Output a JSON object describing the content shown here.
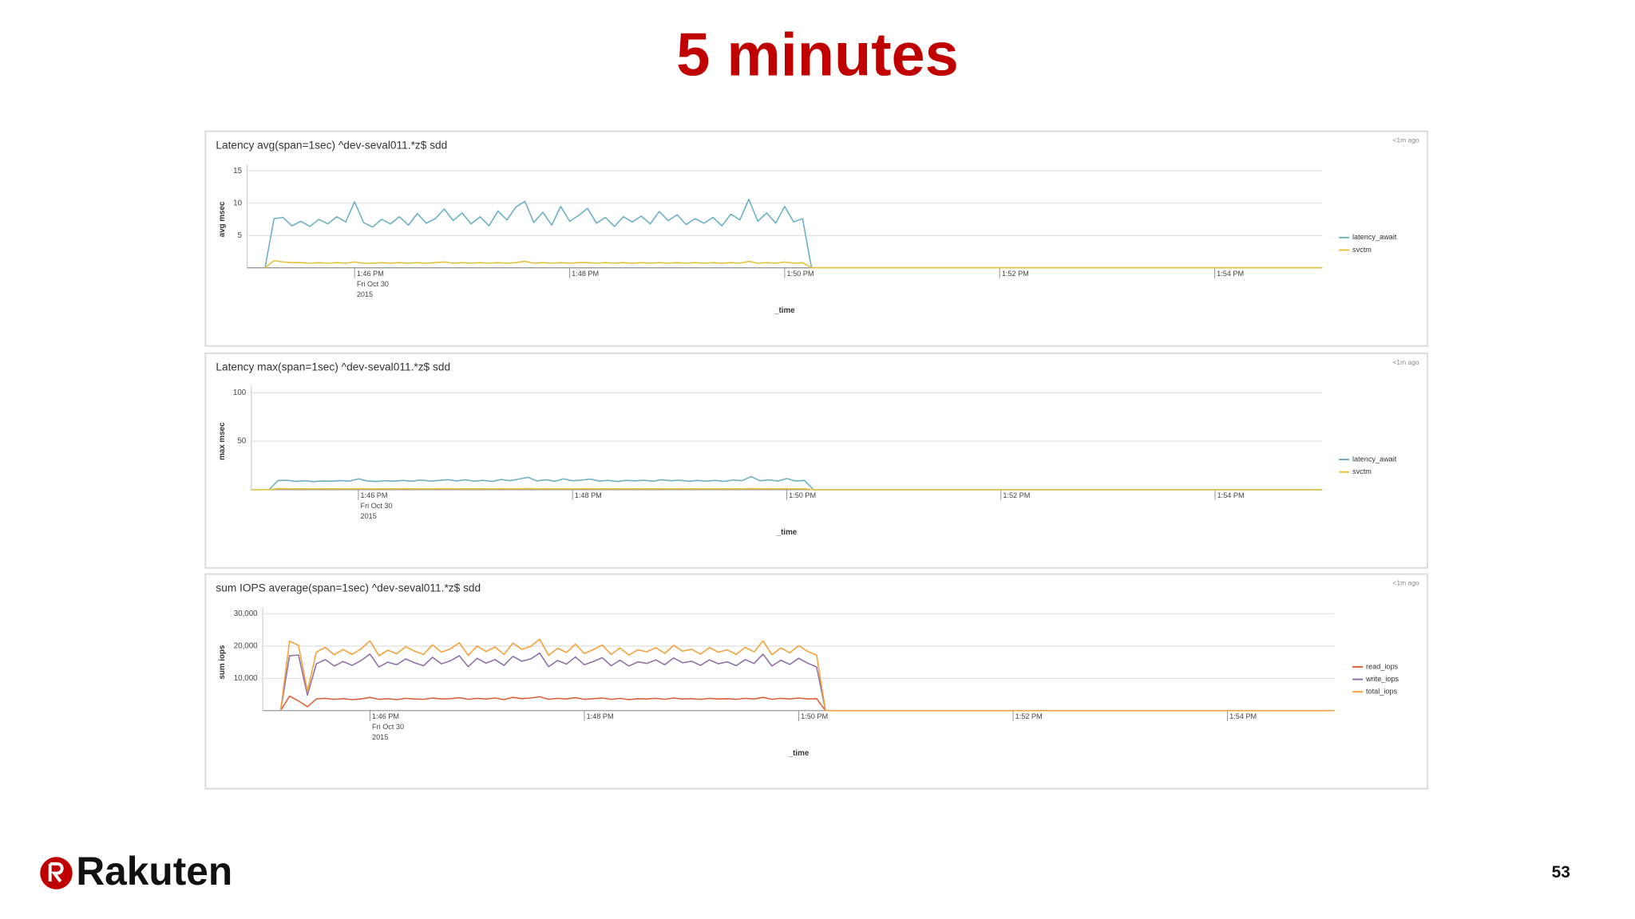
{
  "slide": {
    "title": "5 minutes",
    "logo": "Rakuten",
    "page": "53"
  },
  "chart_data": [
    {
      "type": "line",
      "title": "Latency avg(span=1sec) ^dev-seval011.*z$ sdd",
      "timestamp": "<1m ago",
      "y_label": "avg msec",
      "x_label": "_time",
      "grid": true,
      "legend": "right",
      "x": [
        "13:45:00",
        "13:45:10",
        "13:45:15",
        "13:45:20",
        "13:45:25",
        "13:45:30",
        "13:45:35",
        "13:45:40",
        "13:45:45",
        "13:45:50",
        "13:45:55",
        "13:46:00",
        "13:46:05",
        "13:46:10",
        "13:46:15",
        "13:46:20",
        "13:46:25",
        "13:46:30",
        "13:46:35",
        "13:46:40",
        "13:46:45",
        "13:46:50",
        "13:46:55",
        "13:47:00",
        "13:47:05",
        "13:47:10",
        "13:47:15",
        "13:47:20",
        "13:47:25",
        "13:47:30",
        "13:47:35",
        "13:47:40",
        "13:47:45",
        "13:47:50",
        "13:47:55",
        "13:48:00",
        "13:48:05",
        "13:48:10",
        "13:48:15",
        "13:48:20",
        "13:48:25",
        "13:48:30",
        "13:48:35",
        "13:48:40",
        "13:48:45",
        "13:48:50",
        "13:48:55",
        "13:49:00",
        "13:49:05",
        "13:49:10",
        "13:49:15",
        "13:49:20",
        "13:49:25",
        "13:49:30",
        "13:49:35",
        "13:49:40",
        "13:49:45",
        "13:49:50",
        "13:49:55",
        "13:50:00",
        "13:50:05",
        "13:50:10",
        "13:50:15",
        "13:50:20",
        "13:55:00"
      ],
      "xlim": [
        "13:45:00",
        "13:55:00"
      ],
      "xticks": [
        {
          "value": "13:46:00",
          "label": [
            "1:46 PM",
            "Fri Oct 30",
            "2015"
          ]
        },
        {
          "value": "13:48:00",
          "label": "1:48 PM"
        },
        {
          "value": "13:50:00",
          "label": "1:50 PM"
        },
        {
          "value": "13:52:00",
          "label": "1:52 PM"
        },
        {
          "value": "13:54:00",
          "label": "1:54 PM"
        }
      ],
      "ylim": [
        0,
        15
      ],
      "yticks": [
        5,
        10,
        15
      ],
      "series": [
        {
          "name": "latency_await",
          "color": "#6aafc2",
          "values": [
            null,
            0,
            7.6,
            7.8,
            6.5,
            7.2,
            6.4,
            7.5,
            6.8,
            7.9,
            7.1,
            10.2,
            7.0,
            6.3,
            7.5,
            6.8,
            7.9,
            6.6,
            8.4,
            6.9,
            7.6,
            9.1,
            7.3,
            8.5,
            6.8,
            7.9,
            6.5,
            8.8,
            7.4,
            9.4,
            10.3,
            7.0,
            8.6,
            6.6,
            9.5,
            7.2,
            8.1,
            9.2,
            6.9,
            7.8,
            6.4,
            7.9,
            7.1,
            8.0,
            6.8,
            8.7,
            7.3,
            8.2,
            6.7,
            7.6,
            6.9,
            7.8,
            6.5,
            8.3,
            7.4,
            10.6,
            7.2,
            8.5,
            6.9,
            9.5,
            7.1,
            7.6,
            0,
            0,
            0
          ]
        },
        {
          "name": "svctm",
          "color": "#e6c13a",
          "values": [
            null,
            0,
            1.1,
            0.9,
            0.8,
            0.8,
            0.7,
            0.8,
            0.7,
            0.8,
            0.7,
            0.9,
            0.7,
            0.7,
            0.8,
            0.7,
            0.8,
            0.7,
            0.8,
            0.7,
            0.8,
            0.9,
            0.7,
            0.8,
            0.7,
            0.8,
            0.7,
            0.8,
            0.7,
            0.8,
            1.0,
            0.7,
            0.8,
            0.7,
            0.8,
            0.7,
            0.8,
            0.8,
            0.7,
            0.8,
            0.7,
            0.8,
            0.7,
            0.8,
            0.7,
            0.8,
            0.7,
            0.8,
            0.7,
            0.8,
            0.7,
            0.8,
            0.7,
            0.8,
            0.7,
            1.0,
            0.7,
            0.8,
            0.7,
            0.9,
            0.7,
            0.8,
            0,
            0,
            0
          ]
        }
      ]
    },
    {
      "type": "line",
      "title": "Latency max(span=1sec) ^dev-seval011.*z$ sdd",
      "timestamp": "<1m ago",
      "y_label": "max msec",
      "x_label": "_time",
      "grid": true,
      "legend": "right",
      "x": [
        "13:45:00",
        "13:45:10",
        "13:45:15",
        "13:45:20",
        "13:45:25",
        "13:45:30",
        "13:45:35",
        "13:45:40",
        "13:45:45",
        "13:45:50",
        "13:45:55",
        "13:46:00",
        "13:46:05",
        "13:46:10",
        "13:46:15",
        "13:46:20",
        "13:46:25",
        "13:46:30",
        "13:46:35",
        "13:46:40",
        "13:46:45",
        "13:46:50",
        "13:46:55",
        "13:47:00",
        "13:47:05",
        "13:47:10",
        "13:47:15",
        "13:47:20",
        "13:47:25",
        "13:47:30",
        "13:47:35",
        "13:47:40",
        "13:47:45",
        "13:47:50",
        "13:47:55",
        "13:48:00",
        "13:48:05",
        "13:48:10",
        "13:48:15",
        "13:48:20",
        "13:48:25",
        "13:48:30",
        "13:48:35",
        "13:48:40",
        "13:48:45",
        "13:48:50",
        "13:48:55",
        "13:49:00",
        "13:49:05",
        "13:49:10",
        "13:49:15",
        "13:49:20",
        "13:49:25",
        "13:49:30",
        "13:49:35",
        "13:49:40",
        "13:49:45",
        "13:49:50",
        "13:49:55",
        "13:50:00",
        "13:50:05",
        "13:50:10",
        "13:50:15",
        "13:50:20",
        "13:55:00"
      ],
      "xlim": [
        "13:45:00",
        "13:55:00"
      ],
      "xticks": [
        {
          "value": "13:46:00",
          "label": [
            "1:46 PM",
            "Fri Oct 30",
            "2015"
          ]
        },
        {
          "value": "13:48:00",
          "label": "1:48 PM"
        },
        {
          "value": "13:50:00",
          "label": "1:50 PM"
        },
        {
          "value": "13:52:00",
          "label": "1:52 PM"
        },
        {
          "value": "13:54:00",
          "label": "1:54 PM"
        }
      ],
      "ylim": [
        0,
        100
      ],
      "yticks": [
        50,
        100
      ],
      "series": [
        {
          "name": "latency_await",
          "color": "#6aafc2",
          "values": [
            null,
            0,
            9.5,
            9.8,
            8.6,
            9.2,
            8.4,
            9.0,
            8.8,
            9.4,
            8.9,
            11.2,
            9.0,
            8.5,
            9.3,
            8.8,
            9.6,
            8.7,
            10.1,
            8.9,
            9.5,
            10.4,
            9.1,
            10.2,
            8.8,
            9.7,
            8.6,
            10.5,
            9.3,
            11.0,
            12.8,
            9.0,
            10.3,
            8.7,
            11.2,
            9.2,
            9.9,
            11.0,
            8.9,
            9.6,
            8.5,
            9.7,
            9.1,
            9.8,
            8.8,
            10.3,
            9.2,
            9.9,
            8.7,
            9.5,
            8.9,
            9.6,
            8.6,
            10.1,
            9.3,
            13.5,
            9.2,
            10.2,
            8.9,
            11.5,
            9.0,
            9.5,
            0,
            0,
            0
          ]
        },
        {
          "name": "svctm",
          "color": "#e6c13a",
          "values": [
            0,
            0,
            1.2,
            1.0,
            0.9,
            1.0,
            0.9,
            1.0,
            0.9,
            1.0,
            0.9,
            1.1,
            0.9,
            0.9,
            1.0,
            0.9,
            1.0,
            0.9,
            1.0,
            0.9,
            1.0,
            1.1,
            0.9,
            1.0,
            0.9,
            1.0,
            0.9,
            1.0,
            0.9,
            1.0,
            1.2,
            0.9,
            1.0,
            0.9,
            1.0,
            0.9,
            1.0,
            1.0,
            0.9,
            1.0,
            0.9,
            1.0,
            0.9,
            1.0,
            0.9,
            1.0,
            0.9,
            1.0,
            0.9,
            1.0,
            0.9,
            1.0,
            0.9,
            1.0,
            0.9,
            1.2,
            0.9,
            1.0,
            0.9,
            1.1,
            0.9,
            1.0,
            0,
            0,
            0
          ]
        }
      ]
    },
    {
      "type": "line",
      "title": "sum IOPS average(span=1sec) ^dev-seval011.*z$ sdd",
      "timestamp": "<1m ago",
      "y_label": "sum iops",
      "x_label": "_time",
      "grid": true,
      "legend": "right",
      "x": [
        "13:45:00",
        "13:45:10",
        "13:45:15",
        "13:45:20",
        "13:45:25",
        "13:45:30",
        "13:45:35",
        "13:45:40",
        "13:45:45",
        "13:45:50",
        "13:45:55",
        "13:46:00",
        "13:46:05",
        "13:46:10",
        "13:46:15",
        "13:46:20",
        "13:46:25",
        "13:46:30",
        "13:46:35",
        "13:46:40",
        "13:46:45",
        "13:46:50",
        "13:46:55",
        "13:47:00",
        "13:47:05",
        "13:47:10",
        "13:47:15",
        "13:47:20",
        "13:47:25",
        "13:47:30",
        "13:47:35",
        "13:47:40",
        "13:47:45",
        "13:47:50",
        "13:47:55",
        "13:48:00",
        "13:48:05",
        "13:48:10",
        "13:48:15",
        "13:48:20",
        "13:48:25",
        "13:48:30",
        "13:48:35",
        "13:48:40",
        "13:48:45",
        "13:48:50",
        "13:48:55",
        "13:49:00",
        "13:49:05",
        "13:49:10",
        "13:49:15",
        "13:49:20",
        "13:49:25",
        "13:49:30",
        "13:49:35",
        "13:49:40",
        "13:49:45",
        "13:49:50",
        "13:49:55",
        "13:50:00",
        "13:50:05",
        "13:50:10",
        "13:50:15",
        "13:50:20",
        "13:55:00"
      ],
      "xlim": [
        "13:45:00",
        "13:55:00"
      ],
      "xticks": [
        {
          "value": "13:46:00",
          "label": [
            "1:46 PM",
            "Fri Oct 30",
            "2015"
          ]
        },
        {
          "value": "13:48:00",
          "label": "1:48 PM"
        },
        {
          "value": "13:50:00",
          "label": "1:50 PM"
        },
        {
          "value": "13:52:00",
          "label": "1:52 PM"
        },
        {
          "value": "13:54:00",
          "label": "1:54 PM"
        }
      ],
      "ylim": [
        0,
        30000
      ],
      "yticks": [
        {
          "value": 10000,
          "label": "10,000"
        },
        {
          "value": 20000,
          "label": "20,000"
        },
        {
          "value": 30000,
          "label": "30,000"
        }
      ],
      "series": [
        {
          "name": "read_iops",
          "color": "#d9603b",
          "values": [
            null,
            0,
            4500,
            3000,
            1200,
            3600,
            3800,
            3500,
            3700,
            3400,
            3600,
            4100,
            3500,
            3700,
            3400,
            3800,
            3600,
            3500,
            3900,
            3600,
            3700,
            4000,
            3500,
            3800,
            3600,
            3900,
            3400,
            4100,
            3700,
            3900,
            4300,
            3500,
            3800,
            3600,
            4000,
            3500,
            3700,
            3900,
            3500,
            3800,
            3400,
            3700,
            3600,
            3800,
            3500,
            3900,
            3600,
            3700,
            3500,
            3800,
            3600,
            3700,
            3500,
            3800,
            3600,
            4100,
            3500,
            3800,
            3600,
            3900,
            3600,
            3700,
            0,
            0,
            0
          ]
        },
        {
          "name": "write_iops",
          "color": "#8e6fa6",
          "values": [
            null,
            0,
            17000,
            17200,
            4800,
            14500,
            15800,
            13800,
            15200,
            14000,
            15500,
            17500,
            13500,
            15000,
            14200,
            16000,
            14800,
            13900,
            16500,
            14500,
            15400,
            17000,
            13600,
            16200,
            14700,
            15800,
            14000,
            16800,
            15300,
            16000,
            17800,
            13600,
            15500,
            14400,
            16600,
            14200,
            15200,
            16400,
            13900,
            15600,
            13800,
            15100,
            14600,
            15700,
            14200,
            16300,
            14800,
            15300,
            14000,
            15700,
            14500,
            15100,
            13900,
            15800,
            14600,
            17500,
            13800,
            15600,
            14300,
            16200,
            14700,
            13500,
            0,
            0,
            0
          ]
        },
        {
          "name": "total_iops",
          "color": "#f2a03b",
          "values": [
            null,
            0,
            21500,
            20200,
            6000,
            18100,
            19600,
            17300,
            18900,
            17400,
            19100,
            21600,
            17000,
            18700,
            17600,
            19800,
            18400,
            17400,
            20400,
            18100,
            19100,
            21000,
            17100,
            20000,
            18300,
            19700,
            17400,
            20900,
            19000,
            19900,
            22100,
            17100,
            19300,
            18000,
            20600,
            17700,
            18900,
            20300,
            17400,
            19400,
            17200,
            18800,
            18200,
            19500,
            17700,
            20200,
            18400,
            19000,
            17500,
            19500,
            18100,
            18800,
            17400,
            19600,
            18200,
            21600,
            17300,
            19400,
            17900,
            20100,
            18300,
            17200,
            0,
            0,
            0
          ]
        }
      ]
    }
  ]
}
